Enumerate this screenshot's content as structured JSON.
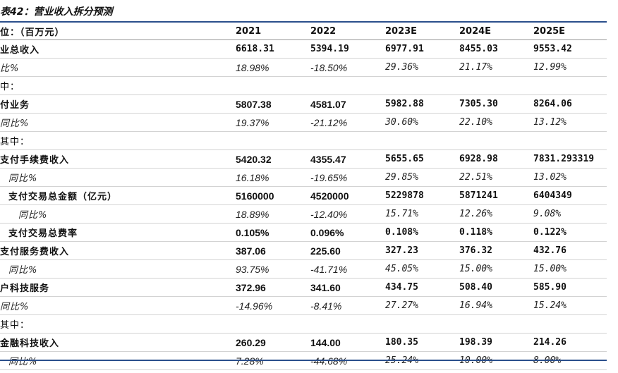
{
  "title": "表42：营业收入拆分预测",
  "header": [
    "位：（百万元）",
    "2021",
    "2022",
    "2023E",
    "2024E",
    "2025E"
  ],
  "rows": [
    {
      "label": "业总收入",
      "indent": 0,
      "kind": "main",
      "values": [
        "6618.31",
        "5394.19",
        "6977.91",
        "8455.03",
        "9553.42"
      ],
      "bold_hist": false
    },
    {
      "label": "比%",
      "indent": 0,
      "kind": "growth",
      "values": [
        "18.98%",
        "-18.50%",
        "29.36%",
        "21.17%",
        "12.99%"
      ],
      "bold_hist": false
    },
    {
      "label": "中：",
      "indent": 0,
      "kind": "section",
      "values": [
        "",
        "",
        "",
        "",
        ""
      ],
      "bold_hist": false
    },
    {
      "label": "付业务",
      "indent": 0,
      "kind": "main",
      "values": [
        "5807.38",
        "4581.07",
        "5982.88",
        "7305.30",
        "8264.06"
      ],
      "bold_hist": true
    },
    {
      "label": "同比%",
      "indent": 0,
      "kind": "growth",
      "values": [
        "19.37%",
        "-21.12%",
        "30.60%",
        "22.10%",
        "13.12%"
      ],
      "bold_hist": false
    },
    {
      "label": "其中：",
      "indent": 0,
      "kind": "section",
      "values": [
        "",
        "",
        "",
        "",
        ""
      ],
      "bold_hist": false
    },
    {
      "label": "支付手续费收入",
      "indent": 0,
      "kind": "main",
      "values": [
        "5420.32",
        "4355.47",
        "5655.65",
        "6928.98",
        "7831.293319"
      ],
      "bold_hist": true
    },
    {
      "label": "同比%",
      "indent": 1,
      "kind": "growth",
      "values": [
        "16.18%",
        "-19.65%",
        "29.85%",
        "22.51%",
        "13.02%"
      ],
      "bold_hist": false
    },
    {
      "label": "支付交易总金额（亿元）",
      "indent": 1,
      "kind": "main",
      "values": [
        "5160000",
        "4520000",
        "5229878",
        "5871241",
        "6404349"
      ],
      "bold_hist": true
    },
    {
      "label": "同比%",
      "indent": 2,
      "kind": "growth",
      "values": [
        "18.89%",
        "-12.40%",
        "15.71%",
        "12.26%",
        "9.08%"
      ],
      "bold_hist": false
    },
    {
      "label": "支付交易总费率",
      "indent": 1,
      "kind": "main",
      "values": [
        "0.105%",
        "0.096%",
        "0.108%",
        "0.118%",
        "0.122%"
      ],
      "bold_hist": true
    },
    {
      "label": "支付服务费收入",
      "indent": 0,
      "kind": "main",
      "values": [
        "387.06",
        "225.60",
        "327.23",
        "376.32",
        "432.76"
      ],
      "bold_hist": true
    },
    {
      "label": "同比%",
      "indent": 1,
      "kind": "growth",
      "values": [
        "93.75%",
        "-41.71%",
        "45.05%",
        "15.00%",
        "15.00%"
      ],
      "bold_hist": false
    },
    {
      "label": "户科技服务",
      "indent": 0,
      "kind": "main",
      "values": [
        "372.96",
        "341.60",
        "434.75",
        "508.40",
        "585.90"
      ],
      "bold_hist": true
    },
    {
      "label": "同比%",
      "indent": 0,
      "kind": "growth",
      "values": [
        "-14.96%",
        "-8.41%",
        "27.27%",
        "16.94%",
        "15.24%"
      ],
      "bold_hist": false
    },
    {
      "label": "其中：",
      "indent": 0,
      "kind": "section",
      "values": [
        "",
        "",
        "",
        "",
        ""
      ],
      "bold_hist": false
    },
    {
      "label": "金融科技收入",
      "indent": 0,
      "kind": "main",
      "values": [
        "260.29",
        "144.00",
        "180.35",
        "198.39",
        "214.26"
      ],
      "bold_hist": true
    },
    {
      "label": "同比%",
      "indent": 1,
      "kind": "growth",
      "values": [
        "7.28%",
        "-44.68%",
        "25.24%",
        "10.00%",
        "8.00%"
      ],
      "bold_hist": false
    }
  ]
}
